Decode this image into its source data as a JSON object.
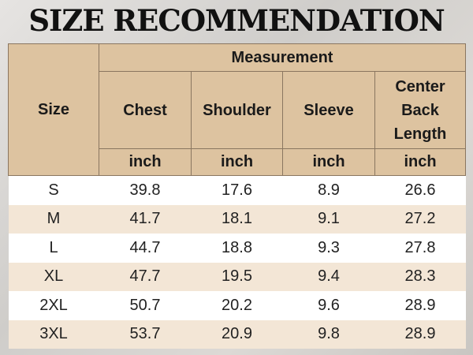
{
  "title": "SIZE RECOMMENDATION",
  "table": {
    "size_header": "Size",
    "group_header": "Measurement",
    "columns": [
      {
        "name": "Chest",
        "unit": "inch"
      },
      {
        "name": "Shoulder",
        "unit": "inch"
      },
      {
        "name": "Sleeve",
        "unit": "inch"
      },
      {
        "name": "Center Back Length",
        "unit": "inch"
      }
    ],
    "rows": [
      [
        "S",
        39.8,
        17.6,
        8.9,
        26.6
      ],
      [
        "M",
        41.7,
        18.1,
        9.1,
        27.2
      ],
      [
        "L",
        44.7,
        18.8,
        9.3,
        27.8
      ],
      [
        "XL",
        47.7,
        19.5,
        9.4,
        28.3
      ],
      [
        "2XL",
        50.7,
        20.2,
        9.6,
        28.9
      ],
      [
        "3XL",
        53.7,
        20.9,
        9.8,
        28.9
      ]
    ]
  }
}
